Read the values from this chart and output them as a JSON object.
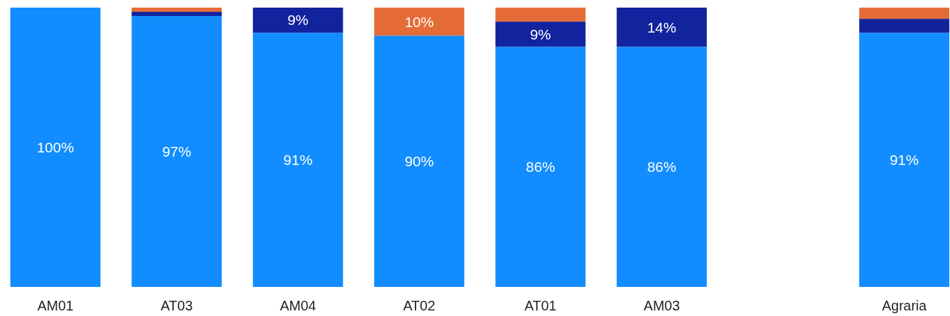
{
  "chart_data": {
    "type": "bar",
    "stacked": true,
    "categories": [
      "AM01",
      "AT03",
      "AM04",
      "AT02",
      "AT01",
      "AM03",
      null,
      "Agraria"
    ],
    "ylim": [
      0,
      100
    ],
    "tick_labels": "x",
    "series": [
      {
        "color": "#118dff",
        "values": [
          100,
          97,
          91,
          90,
          86,
          86,
          null,
          91
        ],
        "value_labels": [
          "100%",
          "97%",
          "91%",
          "90%",
          "86%",
          "86%",
          null,
          "91%"
        ]
      },
      {
        "color": "#12239e",
        "values": [
          0,
          1.5,
          9,
          0,
          9,
          14,
          null,
          5
        ],
        "value_labels": [
          null,
          null,
          "9%",
          null,
          "9%",
          "14%",
          null,
          null
        ]
      },
      {
        "color": "#e66c37",
        "values": [
          0,
          1.5,
          0,
          10,
          5,
          0,
          null,
          4
        ],
        "value_labels": [
          null,
          null,
          null,
          "10%",
          null,
          null,
          null,
          null
        ]
      }
    ]
  }
}
